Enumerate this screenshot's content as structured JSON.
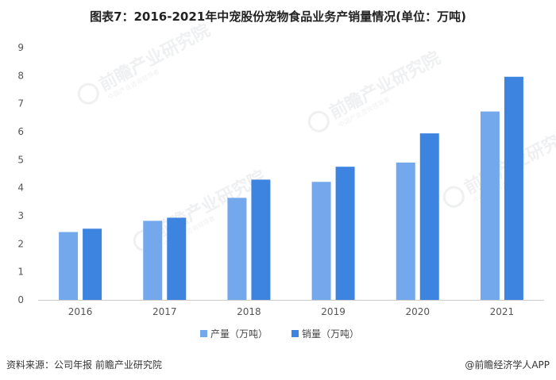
{
  "title": "图表7：2016-2021年中宠股份宠物食品业务产销量情况(单位：万吨)",
  "source": "资料来源：公司年报 前瞻产业研究院",
  "credit": "@前瞻经济学人APP",
  "watermark": {
    "main": "前瞻产业研究院",
    "sub": "中国产业咨询领导者"
  },
  "chart_data": {
    "type": "bar",
    "categories": [
      "2016",
      "2017",
      "2018",
      "2019",
      "2020",
      "2021"
    ],
    "series": [
      {
        "name": "产量（万吨）",
        "color": "#74a8ec",
        "values": [
          2.42,
          2.82,
          3.64,
          4.21,
          4.9,
          6.72
        ]
      },
      {
        "name": "销量（万吨）",
        "color": "#3d84e0",
        "values": [
          2.54,
          2.93,
          4.29,
          4.75,
          5.94,
          7.96
        ]
      }
    ],
    "ylim": [
      0,
      9
    ],
    "yticks": [
      0,
      1,
      2,
      3,
      4,
      5,
      6,
      7,
      8,
      9
    ],
    "grid": false,
    "legend_position": "bottom"
  }
}
